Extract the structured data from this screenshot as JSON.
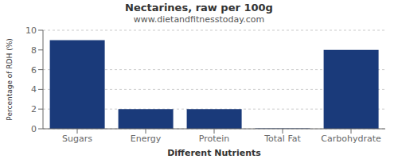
{
  "chart_data": {
    "type": "bar",
    "title": "Nectarines, raw per 100g",
    "subtitle": "www.dietandfitnesstoday.com",
    "xlabel": "Different Nutrients",
    "ylabel": "Percentage of RDH (%)",
    "categories": [
      "Sugars",
      "Energy",
      "Protein",
      "Total Fat",
      "Carbohydrate"
    ],
    "values": [
      9,
      2,
      2,
      0.05,
      8
    ],
    "color": "#1a3a7a",
    "ylim": [
      0,
      10
    ],
    "yticks": [
      0,
      2,
      4,
      6,
      8,
      10
    ],
    "grid": true
  }
}
